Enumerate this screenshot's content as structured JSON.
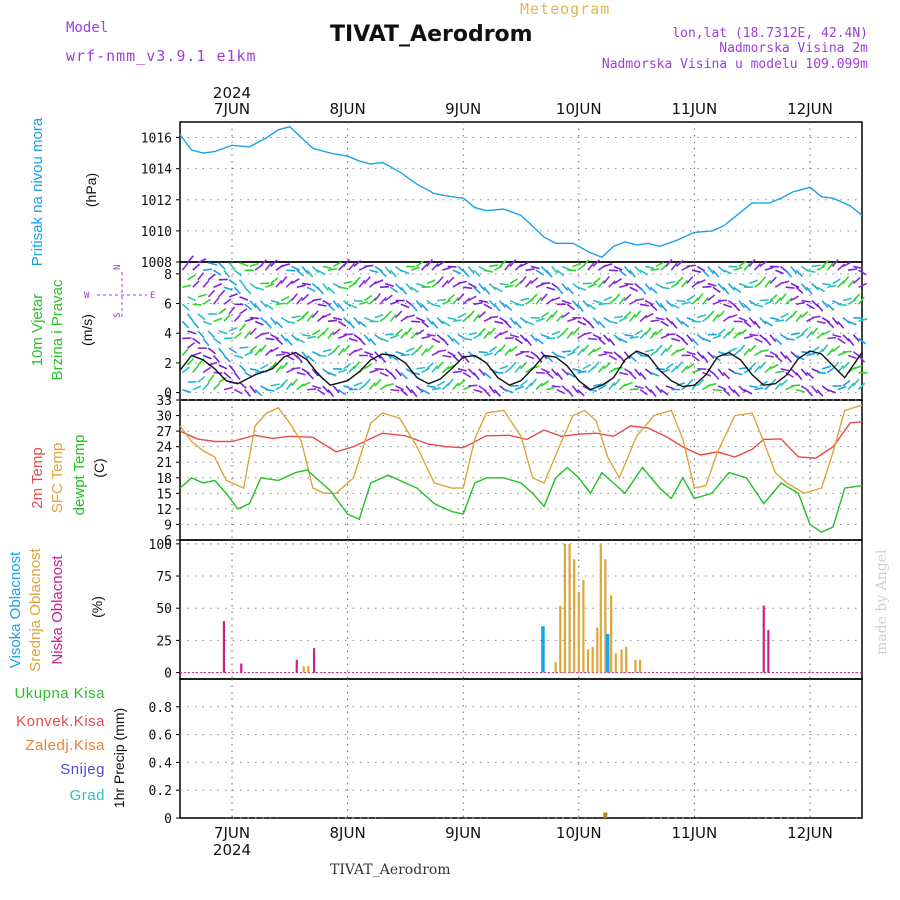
{
  "header": {
    "model_label": "Model",
    "model_name": "wrf-nmm_v3.9.1  e1km",
    "title": "TIVAT_Aerodrom",
    "meteogram_label": "Meteogram",
    "coords": "lon,lat (18.7312E, 42.4N)",
    "elevation": "Nadmorska Visina 2m",
    "model_elevation": "Nadmorska Visina u modelu 109.099m",
    "credit": "made by Angel",
    "footer_station": "TIVAT_Aerodrom"
  },
  "colors": {
    "pressure": "#1aa3e8",
    "temp2m": "#e84a4a",
    "sfc": "#e0a437",
    "dewpt": "#22c022",
    "cloud_high": "#1aa3e8",
    "cloud_mid": "#e0a437",
    "cloud_low": "#cc1f8f",
    "wind_speed": "#111111",
    "green_label": "#2bc02b",
    "red_label": "#e84a4a",
    "orange_label": "#f08030",
    "blue_label": "#4d4dd6",
    "teal_label": "#2bbfbf",
    "purple_label": "#9b3fd6"
  },
  "chart_data": {
    "type": "meteogram",
    "x_days": [
      "7JUN",
      "8JUN",
      "9JUN",
      "10JUN",
      "11JUN",
      "12JUN"
    ],
    "x_year": "2024",
    "x_range_days": [
      6.55,
      12.45
    ],
    "panels": [
      {
        "id": "pressure",
        "labels": [
          "Pritisak na nivou mora",
          "(hPa)"
        ],
        "ylim": [
          1008,
          1017
        ],
        "yticks": [
          1008,
          1010,
          1012,
          1014,
          1016
        ],
        "series": [
          {
            "day": [
              6.55,
              6.65,
              6.75,
              6.85,
              7.0,
              7.15,
              7.3,
              7.4,
              7.5,
              7.6,
              7.7,
              7.85,
              8.0,
              8.1,
              8.2,
              8.3,
              8.45,
              8.6,
              8.75,
              8.9,
              9.0,
              9.1,
              9.2,
              9.35,
              9.5,
              9.6,
              9.7,
              9.8,
              9.95,
              10.1,
              10.2,
              10.3,
              10.4,
              10.5,
              10.6,
              10.7,
              10.85,
              11.0,
              11.15,
              11.25,
              11.35,
              11.5,
              11.65,
              11.75,
              11.85,
              12.0,
              12.1,
              12.2,
              12.35,
              12.45
            ],
            "value": [
              1016.2,
              1015.2,
              1015.0,
              1015.1,
              1015.5,
              1015.4,
              1016.0,
              1016.5,
              1016.7,
              1016.0,
              1015.3,
              1015.0,
              1014.8,
              1014.5,
              1014.3,
              1014.4,
              1013.8,
              1013.0,
              1012.4,
              1012.2,
              1012.1,
              1011.5,
              1011.3,
              1011.4,
              1011.0,
              1010.3,
              1009.6,
              1009.2,
              1009.2,
              1008.6,
              1008.3,
              1009.0,
              1009.3,
              1009.1,
              1009.2,
              1009.0,
              1009.4,
              1009.9,
              1010.0,
              1010.3,
              1010.9,
              1011.8,
              1011.8,
              1012.1,
              1012.5,
              1012.8,
              1012.2,
              1012.1,
              1011.6,
              1011.0
            ]
          }
        ]
      },
      {
        "id": "wind",
        "labels": [
          "10m Vjetar",
          "Brzina i Pravac",
          "(m/s)"
        ],
        "compass": [
          "N",
          "S",
          "E",
          "W"
        ],
        "ylim": [
          -0.5,
          8.8
        ],
        "yticks": [
          0,
          2,
          4,
          6,
          8
        ],
        "speed": {
          "day": [
            6.55,
            6.65,
            6.75,
            6.85,
            6.95,
            7.05,
            7.2,
            7.35,
            7.45,
            7.55,
            7.65,
            7.75,
            7.85,
            8.0,
            8.1,
            8.2,
            8.3,
            8.4,
            8.5,
            8.6,
            8.7,
            8.8,
            8.9,
            9.0,
            9.1,
            9.2,
            9.3,
            9.4,
            9.5,
            9.6,
            9.7,
            9.8,
            9.9,
            10.0,
            10.1,
            10.2,
            10.3,
            10.4,
            10.5,
            10.6,
            10.7,
            10.8,
            10.9,
            11.0,
            11.1,
            11.2,
            11.3,
            11.4,
            11.5,
            11.6,
            11.7,
            11.8,
            11.9,
            12.0,
            12.1,
            12.2,
            12.3,
            12.45
          ],
          "value": [
            1.5,
            2.5,
            2.2,
            1.6,
            0.8,
            0.6,
            1.2,
            1.6,
            2.4,
            2.7,
            2.2,
            1.2,
            0.5,
            0.8,
            1.4,
            2.2,
            2.6,
            2.5,
            2.0,
            1.0,
            0.6,
            0.9,
            1.6,
            2.4,
            2.5,
            2.0,
            1.0,
            0.5,
            0.8,
            1.6,
            2.5,
            2.4,
            1.8,
            0.8,
            0.2,
            0.5,
            1.0,
            2.2,
            2.8,
            2.5,
            1.5,
            0.8,
            0.4,
            0.5,
            1.2,
            2.4,
            2.7,
            2.2,
            1.2,
            0.5,
            0.6,
            1.2,
            2.3,
            2.8,
            2.6,
            1.8,
            1.0,
            2.7
          ]
        }
      },
      {
        "id": "temperature",
        "labels": [
          "2m Temp",
          "SFC Temp",
          "dewpt Temp",
          "(C)"
        ],
        "ylim": [
          6,
          33
        ],
        "yticks": [
          6,
          9,
          12,
          15,
          18,
          21,
          24,
          27,
          30,
          33
        ],
        "series": [
          {
            "name": "2m Temp",
            "day": [
              6.55,
              6.7,
              6.85,
              7.0,
              7.2,
              7.35,
              7.5,
              7.7,
              7.8,
              7.9,
              8.05,
              8.3,
              8.5,
              8.7,
              8.85,
              9.0,
              9.2,
              9.4,
              9.55,
              9.7,
              9.85,
              10.0,
              10.15,
              10.3,
              10.45,
              10.6,
              10.75,
              10.9,
              11.05,
              11.2,
              11.35,
              11.5,
              11.6,
              11.75,
              11.9,
              12.05,
              12.2,
              12.35,
              12.45
            ],
            "value": [
              27.0,
              25.5,
              25.0,
              25.0,
              26.2,
              25.6,
              26.0,
              25.8,
              24.4,
              23.0,
              24.0,
              26.6,
              26.1,
              24.5,
              24.0,
              23.8,
              26.1,
              26.2,
              25.4,
              27.2,
              26.0,
              26.4,
              26.6,
              26.0,
              28.0,
              27.6,
              26.0,
              24.0,
              22.4,
              23.0,
              22.0,
              23.5,
              25.4,
              25.5,
              22.0,
              21.8,
              24.0,
              28.6,
              28.8
            ]
          },
          {
            "name": "SFC Temp",
            "day": [
              6.55,
              6.65,
              6.75,
              6.85,
              6.95,
              7.1,
              7.2,
              7.3,
              7.4,
              7.5,
              7.6,
              7.7,
              7.8,
              7.9,
              8.05,
              8.2,
              8.3,
              8.45,
              8.6,
              8.75,
              8.9,
              9.0,
              9.1,
              9.2,
              9.35,
              9.5,
              9.6,
              9.7,
              9.85,
              9.95,
              10.05,
              10.15,
              10.25,
              10.35,
              10.5,
              10.65,
              10.8,
              10.9,
              11.0,
              11.1,
              11.2,
              11.35,
              11.5,
              11.6,
              11.7,
              11.8,
              11.95,
              12.1,
              12.2,
              12.3,
              12.45
            ],
            "value": [
              28.0,
              25.0,
              23.2,
              22.0,
              17.5,
              16.0,
              28.0,
              30.5,
              31.5,
              28.5,
              25.0,
              16.0,
              15.0,
              15.0,
              18.0,
              28.5,
              30.5,
              29.5,
              24.0,
              17.0,
              16.0,
              16.0,
              25.5,
              30.5,
              31.0,
              26.0,
              18.0,
              17.0,
              25.0,
              30.0,
              31.0,
              29.0,
              22.0,
              18.0,
              26.0,
              30.0,
              31.0,
              25.5,
              16.0,
              16.5,
              23.0,
              30.0,
              30.5,
              25.0,
              19.0,
              17.0,
              15.0,
              16.0,
              23.0,
              31.0,
              32.0
            ]
          },
          {
            "name": "dewpt Temp",
            "day": [
              6.55,
              6.65,
              6.75,
              6.85,
              6.95,
              7.05,
              7.15,
              7.25,
              7.4,
              7.55,
              7.65,
              7.75,
              7.85,
              8.0,
              8.1,
              8.2,
              8.35,
              8.5,
              8.6,
              8.75,
              8.9,
              9.0,
              9.1,
              9.2,
              9.35,
              9.5,
              9.6,
              9.7,
              9.8,
              9.9,
              10.0,
              10.1,
              10.2,
              10.3,
              10.4,
              10.55,
              10.7,
              10.8,
              10.9,
              11.0,
              11.15,
              11.3,
              11.45,
              11.6,
              11.75,
              11.9,
              12.0,
              12.1,
              12.2,
              12.3,
              12.45
            ],
            "value": [
              16.0,
              18.0,
              17.0,
              17.5,
              15.0,
              12.0,
              13.0,
              18.0,
              17.5,
              19.0,
              19.5,
              17.5,
              15.5,
              11.0,
              10.0,
              17.0,
              18.5,
              17.0,
              16.0,
              13.0,
              11.5,
              11.0,
              17.0,
              18.0,
              18.0,
              17.0,
              15.0,
              12.5,
              18.0,
              20.0,
              18.0,
              15.0,
              19.0,
              17.0,
              15.0,
              20.0,
              16.0,
              14.0,
              18.0,
              14.0,
              15.0,
              19.0,
              18.0,
              13.0,
              17.0,
              15.0,
              9.0,
              7.5,
              8.5,
              16.0,
              16.5
            ]
          }
        ]
      },
      {
        "id": "cloud",
        "labels": [
          "Visoka Oblacnost",
          "Srednja Oblacnost",
          "Niska Oblacnost",
          "(%)"
        ],
        "ylim": [
          -5,
          103
        ],
        "yticks": [
          0,
          25,
          50,
          75,
          100
        ],
        "bars": [
          {
            "series": "Niska",
            "day": 6.93,
            "value": 40
          },
          {
            "series": "Niska",
            "day": 7.08,
            "value": 7
          },
          {
            "series": "Niska",
            "day": 7.56,
            "value": 10
          },
          {
            "series": "Srednja",
            "day": 7.62,
            "value": 5
          },
          {
            "series": "Srednja",
            "day": 7.66,
            "value": 5
          },
          {
            "series": "Niska",
            "day": 7.71,
            "value": 19
          },
          {
            "series": "Visoka",
            "day": 9.69,
            "value": 36
          },
          {
            "series": "Srednja",
            "day": 9.8,
            "value": 8
          },
          {
            "series": "Srednja",
            "day": 9.84,
            "value": 52
          },
          {
            "series": "Srednja",
            "day": 9.88,
            "value": 100
          },
          {
            "series": "Srednja",
            "day": 9.92,
            "value": 100
          },
          {
            "series": "Srednja",
            "day": 9.96,
            "value": 88
          },
          {
            "series": "Srednja",
            "day": 10.0,
            "value": 62
          },
          {
            "series": "Srednja",
            "day": 10.04,
            "value": 72
          },
          {
            "series": "Srednja",
            "day": 10.08,
            "value": 18
          },
          {
            "series": "Srednja",
            "day": 10.12,
            "value": 20
          },
          {
            "series": "Srednja",
            "day": 10.16,
            "value": 35
          },
          {
            "series": "Srednja",
            "day": 10.19,
            "value": 100
          },
          {
            "series": "Srednja",
            "day": 10.23,
            "value": 88
          },
          {
            "series": "Visoka",
            "day": 10.25,
            "value": 30
          },
          {
            "series": "Srednja",
            "day": 10.28,
            "value": 60
          },
          {
            "series": "Srednja",
            "day": 10.32,
            "value": 15
          },
          {
            "series": "Srednja",
            "day": 10.37,
            "value": 18
          },
          {
            "series": "Srednja",
            "day": 10.41,
            "value": 20
          },
          {
            "series": "Srednja",
            "day": 10.49,
            "value": 10
          },
          {
            "series": "Srednja",
            "day": 10.53,
            "value": 10
          },
          {
            "series": "Niska",
            "day": 11.6,
            "value": 52
          },
          {
            "series": "Niska",
            "day": 11.64,
            "value": 33
          }
        ]
      },
      {
        "id": "precip",
        "labels": [
          "Ukupna Kisa",
          "Konvek.Kisa",
          "Zaledj.Kisa",
          "Snijeg",
          "Grad",
          "1hr Precip (mm)"
        ],
        "ylim": [
          0,
          1.0
        ],
        "yticks": [
          0,
          0.2,
          0.4,
          0.6,
          0.8
        ],
        "bars": [
          {
            "series": "Zaledj",
            "day": 10.23,
            "value": 0.04
          }
        ]
      }
    ]
  }
}
